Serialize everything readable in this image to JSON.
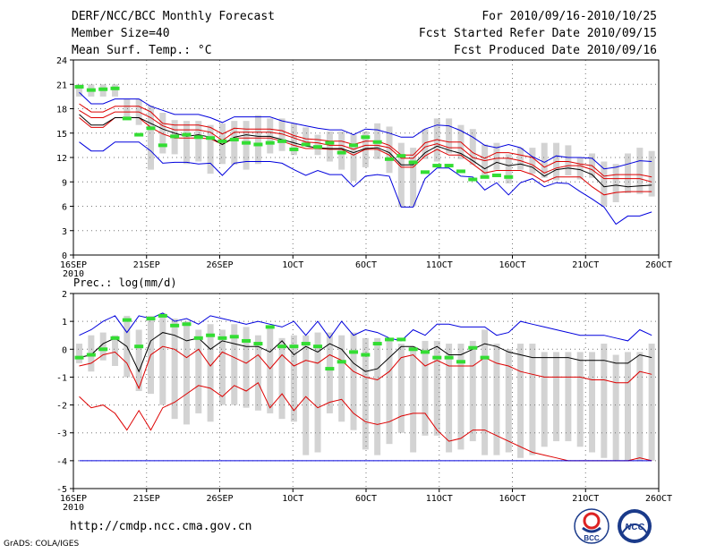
{
  "header": {
    "title": "DERF/NCC/BCC Monthly Forecast",
    "member": "Member Size=40",
    "variable": "Mean Surf. Temp.: °C",
    "period": "For 2010/09/16-2010/10/25",
    "started": "Fcst Started Refer Date 2010/09/15",
    "produced": "Fcst Produced Date 2010/09/16"
  },
  "footer": {
    "url": "http://cmdp.ncc.cma.gov.cn",
    "grads": "GrADS: COLA/IGES",
    "logo1_text": "BCC",
    "logo2_text": "NCC"
  },
  "colors": {
    "envelope": "#0000dd",
    "spread": "#dd0000",
    "mean": "#000000",
    "box": "#d3d3d3",
    "obs": "#33dd33",
    "grid": "#777777"
  },
  "chart_data": [
    {
      "type": "line",
      "title": "Mean Surf. Temp.: °C",
      "ylim": [
        0,
        24
      ],
      "yticks": [
        0,
        3,
        6,
        9,
        12,
        15,
        18,
        21,
        24
      ],
      "xlim": [
        0,
        40
      ],
      "xtick_pos": [
        0,
        5,
        10,
        15,
        20,
        25,
        30,
        35,
        40
      ],
      "xtick_labels": [
        "16SEP",
        "21SEP",
        "26SEP",
        "1OCT",
        "6OCT",
        "11OCT",
        "16OCT",
        "21OCT",
        "26OCT"
      ],
      "xsub": "2010",
      "series": [
        {
          "name": "max",
          "values": [
            13.9,
            12.8,
            12.8,
            13.9,
            13.9,
            13.9,
            12.8,
            11.3,
            11.4,
            11.4,
            11.2,
            11.3,
            9.8,
            11.3,
            11.5,
            11.5,
            11.5,
            11.3,
            10.5,
            9.8,
            10.4,
            9.9,
            9.9,
            8.4,
            9.7,
            9.9,
            9.7,
            5.9,
            5.9,
            9.4,
            10.7,
            10.7,
            9.7,
            9.6,
            8.0,
            8.9,
            7.4,
            8.9,
            9.4,
            8.4,
            8.9,
            8.8,
            7.8,
            6.9,
            5.9,
            3.8,
            4.8,
            4.8,
            5.3
          ]
        },
        {
          "name": "min",
          "values": [
            16.9,
            15.7,
            15.7,
            16.9,
            16.9,
            16.9,
            15.7,
            14.9,
            14.4,
            14.4,
            14.4,
            14.3,
            13.6,
            14.4,
            14.4,
            14.4,
            14.4,
            14.0,
            13.5,
            13.1,
            13.1,
            13.0,
            13.0,
            12.3,
            13.0,
            13.0,
            12.3,
            10.8,
            10.8,
            12.2,
            13.0,
            12.3,
            12.3,
            11.2,
            10.1,
            10.4,
            10.4,
            10.4,
            9.9,
            9.0,
            9.6,
            9.6,
            9.6,
            8.4,
            7.4,
            7.7,
            7.8,
            7.8,
            7.8
          ]
        },
        {
          "name": "mean",
          "values": [
            17.3,
            16.0,
            16.0,
            16.9,
            16.9,
            16.9,
            16.2,
            15.5,
            15.0,
            14.6,
            14.8,
            14.5,
            13.6,
            14.5,
            14.8,
            14.6,
            14.6,
            14.2,
            13.8,
            13.4,
            13.2,
            13.1,
            13.1,
            12.6,
            13.1,
            13.2,
            12.6,
            11.1,
            11.1,
            12.6,
            13.4,
            12.9,
            12.5,
            11.6,
            10.6,
            11.4,
            11.0,
            11.2,
            10.8,
            9.7,
            10.5,
            10.7,
            10.5,
            9.9,
            8.4,
            8.6,
            8.4,
            8.5,
            8.6
          ]
        },
        {
          "name": "max2",
          "values": [
            17.8,
            16.9,
            16.9,
            17.6,
            17.6,
            17.6,
            16.9,
            15.9,
            15.4,
            15.4,
            15.4,
            15.1,
            14.1,
            15.1,
            15.1,
            15.1,
            15.1,
            14.9,
            14.4,
            13.9,
            13.8,
            13.5,
            13.5,
            13.0,
            13.5,
            13.5,
            13.2,
            11.9,
            11.9,
            13.3,
            13.7,
            13.2,
            13.2,
            12.0,
            11.6,
            11.9,
            11.9,
            11.6,
            11.1,
            10.1,
            10.7,
            11.0,
            11.0,
            10.5,
            9.4,
            9.4,
            9.4,
            9.4,
            9.0
          ]
        },
        {
          "name": "max3",
          "values": [
            18.6,
            17.6,
            17.6,
            18.3,
            18.3,
            18.3,
            17.6,
            16.2,
            16.0,
            16.0,
            16.0,
            15.7,
            14.9,
            15.6,
            15.5,
            15.5,
            15.5,
            15.3,
            14.7,
            14.3,
            14.2,
            14.0,
            14.0,
            13.6,
            14.0,
            14.0,
            13.5,
            12.3,
            12.3,
            13.8,
            14.2,
            13.9,
            13.9,
            12.6,
            11.9,
            12.6,
            12.6,
            12.3,
            12.0,
            10.8,
            11.5,
            11.5,
            11.2,
            11.0,
            9.7,
            9.9,
            9.9,
            9.9,
            9.6
          ]
        },
        {
          "name": "top",
          "values": [
            20.0,
            18.6,
            18.6,
            19.2,
            19.2,
            19.2,
            18.3,
            17.8,
            17.3,
            17.3,
            17.3,
            16.9,
            16.3,
            17.0,
            17.0,
            17.0,
            17.0,
            16.5,
            16.2,
            15.9,
            15.6,
            15.4,
            15.4,
            14.8,
            15.5,
            15.4,
            15.0,
            14.5,
            14.5,
            15.5,
            16.0,
            15.9,
            15.3,
            14.5,
            13.5,
            13.2,
            13.6,
            13.2,
            12.1,
            11.4,
            12.2,
            12.0,
            12.0,
            11.9,
            10.6,
            10.8,
            11.2,
            11.6,
            11.5
          ]
        }
      ],
      "boxes": [
        [
          19.5,
          21
        ],
        [
          19.5,
          21
        ],
        [
          19.5,
          21
        ],
        [
          19.5,
          21
        ],
        [
          17.0,
          19.2
        ],
        [
          16.0,
          19.2
        ],
        [
          10.5,
          18.4
        ],
        [
          12.5,
          17.5
        ],
        [
          12.4,
          16.6
        ],
        [
          11.2,
          16.5
        ],
        [
          11.5,
          16.5
        ],
        [
          10.0,
          16.0
        ],
        [
          11.2,
          16.2
        ],
        [
          11.1,
          16.5
        ],
        [
          10.5,
          16.5
        ],
        [
          11.2,
          17.2
        ],
        [
          12.5,
          16.8
        ],
        [
          12.8,
          16.8
        ],
        [
          12.3,
          16.2
        ],
        [
          13.6,
          15.7
        ],
        [
          12.3,
          14.8
        ],
        [
          11.5,
          15.2
        ],
        [
          10.5,
          15.2
        ],
        [
          9.1,
          14.8
        ],
        [
          10.8,
          15.2
        ],
        [
          11.8,
          16.2
        ],
        [
          10.1,
          15.8
        ],
        [
          5.9,
          13.8
        ],
        [
          6.0,
          13.2
        ],
        [
          11.8,
          15.5
        ],
        [
          11.5,
          16.8
        ],
        [
          12.5,
          16.8
        ],
        [
          11.8,
          16.0
        ],
        [
          11.1,
          15.5
        ],
        [
          9.8,
          13.6
        ],
        [
          10.5,
          13.8
        ],
        [
          8.8,
          12.4
        ],
        [
          10.5,
          13.2
        ],
        [
          10.0,
          13.2
        ],
        [
          9.5,
          13.8
        ],
        [
          9.2,
          13.8
        ],
        [
          9.8,
          13.5
        ],
        [
          9.3,
          12.0
        ],
        [
          9.5,
          12.5
        ],
        [
          6.0,
          11.5
        ],
        [
          6.5,
          11.2
        ],
        [
          7.6,
          12.5
        ],
        [
          7.5,
          13.2
        ],
        [
          7.2,
          12.8
        ]
      ],
      "obs": [
        20.7,
        20.3,
        20.4,
        20.5,
        16.8,
        14.8,
        15.6,
        13.5,
        14.6,
        14.8,
        14.5,
        14.4,
        14.0,
        14.2,
        13.8,
        13.6,
        13.8,
        14.0,
        13.0,
        13.6,
        13.3,
        13.8,
        12.6,
        13.5,
        14.5,
        13.9,
        11.8,
        12.2,
        11.4,
        10.2,
        11.0,
        11.0,
        10.3,
        9.3,
        9.6,
        9.8,
        9.6
      ]
    },
    {
      "type": "line",
      "title": "Prec.: log(mm/d)",
      "ylim": [
        -5,
        2
      ],
      "yticks": [
        -5,
        -4,
        -3,
        -2,
        -1,
        0,
        1,
        2
      ],
      "xlim": [
        0,
        40
      ],
      "xtick_pos": [
        0,
        5,
        10,
        15,
        20,
        25,
        30,
        35,
        40
      ],
      "xtick_labels": [
        "16SEP",
        "21SEP",
        "26SEP",
        "1OCT",
        "6OCT",
        "11OCT",
        "16OCT",
        "21OCT",
        "26OCT"
      ],
      "xsub": "2010",
      "series": [
        {
          "name": "envelope_top",
          "values": [
            0.5,
            0.7,
            1.0,
            1.2,
            0.6,
            1.2,
            1.1,
            1.3,
            1.0,
            1.1,
            0.9,
            1.2,
            1.1,
            1.0,
            0.9,
            1.0,
            0.9,
            0.8,
            1.0,
            0.5,
            1.0,
            0.4,
            1.0,
            0.5,
            0.7,
            0.6,
            0.4,
            0.3,
            0.7,
            0.5,
            0.9,
            0.9,
            0.8,
            0.8,
            0.8,
            0.5,
            0.6,
            1.0,
            0.9,
            0.8,
            0.7,
            0.6,
            0.5,
            0.5,
            0.5,
            0.4,
            0.3,
            0.7,
            0.5
          ]
        },
        {
          "name": "mean",
          "values": [
            -0.3,
            -0.2,
            0.2,
            0.4,
            0.1,
            -0.8,
            0.3,
            0.6,
            0.5,
            0.3,
            0.4,
            0.0,
            0.3,
            0.2,
            0.1,
            0.1,
            -0.1,
            0.3,
            -0.2,
            0.1,
            -0.1,
            0.2,
            0.0,
            -0.5,
            -0.8,
            -0.7,
            -0.3,
            0.1,
            0.1,
            -0.1,
            0.1,
            -0.2,
            -0.2,
            0.0,
            0.2,
            0.1,
            -0.1,
            -0.2,
            -0.3,
            -0.3,
            -0.3,
            -0.3,
            -0.4,
            -0.4,
            -0.4,
            -0.5,
            -0.5,
            -0.2,
            -0.3
          ]
        },
        {
          "name": "spread_low",
          "values": [
            -0.6,
            -0.5,
            -0.2,
            -0.1,
            -0.5,
            -1.4,
            -0.2,
            0.1,
            0.0,
            -0.3,
            0.0,
            -0.6,
            -0.1,
            -0.3,
            -0.5,
            -0.2,
            -0.7,
            -0.2,
            -0.6,
            -0.4,
            -0.5,
            -0.2,
            -0.4,
            -0.8,
            -1.0,
            -1.1,
            -0.8,
            -0.3,
            -0.2,
            -0.6,
            -0.4,
            -0.6,
            -0.6,
            -0.6,
            -0.3,
            -0.5,
            -0.6,
            -0.8,
            -0.9,
            -1.0,
            -1.0,
            -1.0,
            -1.0,
            -1.1,
            -1.1,
            -1.2,
            -1.2,
            -0.8,
            -0.9
          ]
        },
        {
          "name": "spread_bottom",
          "values": [
            -1.7,
            -2.1,
            -2.0,
            -2.3,
            -2.9,
            -2.2,
            -2.9,
            -2.1,
            -1.9,
            -1.6,
            -1.3,
            -1.4,
            -1.7,
            -1.3,
            -1.5,
            -1.2,
            -2.1,
            -1.6,
            -2.2,
            -1.7,
            -2.1,
            -1.9,
            -1.8,
            -2.3,
            -2.6,
            -2.7,
            -2.6,
            -2.4,
            -2.3,
            -2.3,
            -2.9,
            -3.3,
            -3.2,
            -2.9,
            -2.9,
            -3.1,
            -3.3,
            -3.5,
            -3.7,
            -3.8,
            -3.9,
            -4.0,
            -4.0,
            -4.0,
            -4.0,
            -4.0,
            -4.0,
            -3.9,
            -4.0
          ]
        },
        {
          "name": "floor",
          "values": [
            -4.0,
            -4.0,
            -4.0,
            -4.0,
            -4.0,
            -4.0,
            -4.0,
            -4.0,
            -4.0,
            -4.0,
            -4.0,
            -4.0,
            -4.0,
            -4.0,
            -4.0,
            -4.0,
            -4.0,
            -4.0,
            -4.0,
            -4.0,
            -4.0,
            -4.0,
            -4.0,
            -4.0,
            -4.0,
            -4.0,
            -4.0,
            -4.0,
            -4.0,
            -4.0,
            -4.0,
            -4.0,
            -4.0,
            -4.0,
            -4.0,
            -4.0,
            -4.0,
            -4.0,
            -4.0,
            -4.0,
            -4.0,
            -4.0,
            -4.0,
            -4.0,
            -4.0,
            -4.0,
            -4.0,
            -4.0,
            -4.0
          ]
        }
      ],
      "boxes": [
        [
          -0.5,
          0.2
        ],
        [
          -0.8,
          0.5
        ],
        [
          -0.4,
          0.6
        ],
        [
          -0.6,
          0.5
        ],
        [
          -1.0,
          1.2
        ],
        [
          -1.5,
          0.7
        ],
        [
          -1.6,
          1.2
        ],
        [
          -2.0,
          1.3
        ],
        [
          -2.5,
          1.1
        ],
        [
          -2.7,
          1.0
        ],
        [
          -2.3,
          0.7
        ],
        [
          -2.6,
          0.9
        ],
        [
          -2.0,
          0.7
        ],
        [
          -2.0,
          0.9
        ],
        [
          -2.1,
          0.8
        ],
        [
          -2.2,
          0.5
        ],
        [
          -2.3,
          0.8
        ],
        [
          -2.5,
          0.4
        ],
        [
          -2.6,
          0.5
        ],
        [
          -3.8,
          0.5
        ],
        [
          -3.7,
          0.6
        ],
        [
          -2.3,
          0.6
        ],
        [
          -2.6,
          0.5
        ],
        [
          -2.9,
          0.6
        ],
        [
          -3.6,
          0.4
        ],
        [
          -3.8,
          0.4
        ],
        [
          -3.4,
          0.3
        ],
        [
          -3.0,
          0.2
        ],
        [
          -3.7,
          0.1
        ],
        [
          -3.1,
          0.3
        ],
        [
          -3.1,
          0.3
        ],
        [
          -3.7,
          0.2
        ],
        [
          -3.6,
          0.2
        ],
        [
          -3.3,
          0.3
        ],
        [
          -3.8,
          0.7
        ],
        [
          -3.8,
          0.2
        ],
        [
          -3.7,
          0.0
        ],
        [
          -3.9,
          0.2
        ],
        [
          -3.8,
          0.2
        ],
        [
          -3.5,
          -0.1
        ],
        [
          -3.3,
          -0.1
        ],
        [
          -3.3,
          -0.1
        ],
        [
          -3.5,
          -0.1
        ],
        [
          -3.7,
          -0.1
        ],
        [
          -3.9,
          0.2
        ],
        [
          -4.0,
          -0.2
        ],
        [
          -4.0,
          -0.1
        ],
        [
          -4.0,
          -0.1
        ],
        [
          -4.0,
          0.2
        ]
      ],
      "obs": [
        -0.3,
        -0.2,
        0.0,
        0.4,
        1.05,
        0.1,
        1.1,
        1.2,
        0.85,
        0.9,
        0.4,
        0.5,
        0.4,
        0.45,
        0.3,
        0.2,
        0.8,
        0.1,
        0.1,
        0.2,
        0.1,
        -0.7,
        -0.45,
        -0.1,
        -0.2,
        0.2,
        0.35,
        0.35,
        0.0,
        -0.1,
        -0.3,
        -0.3,
        -0.45,
        0.05,
        -0.3
      ]
    }
  ]
}
